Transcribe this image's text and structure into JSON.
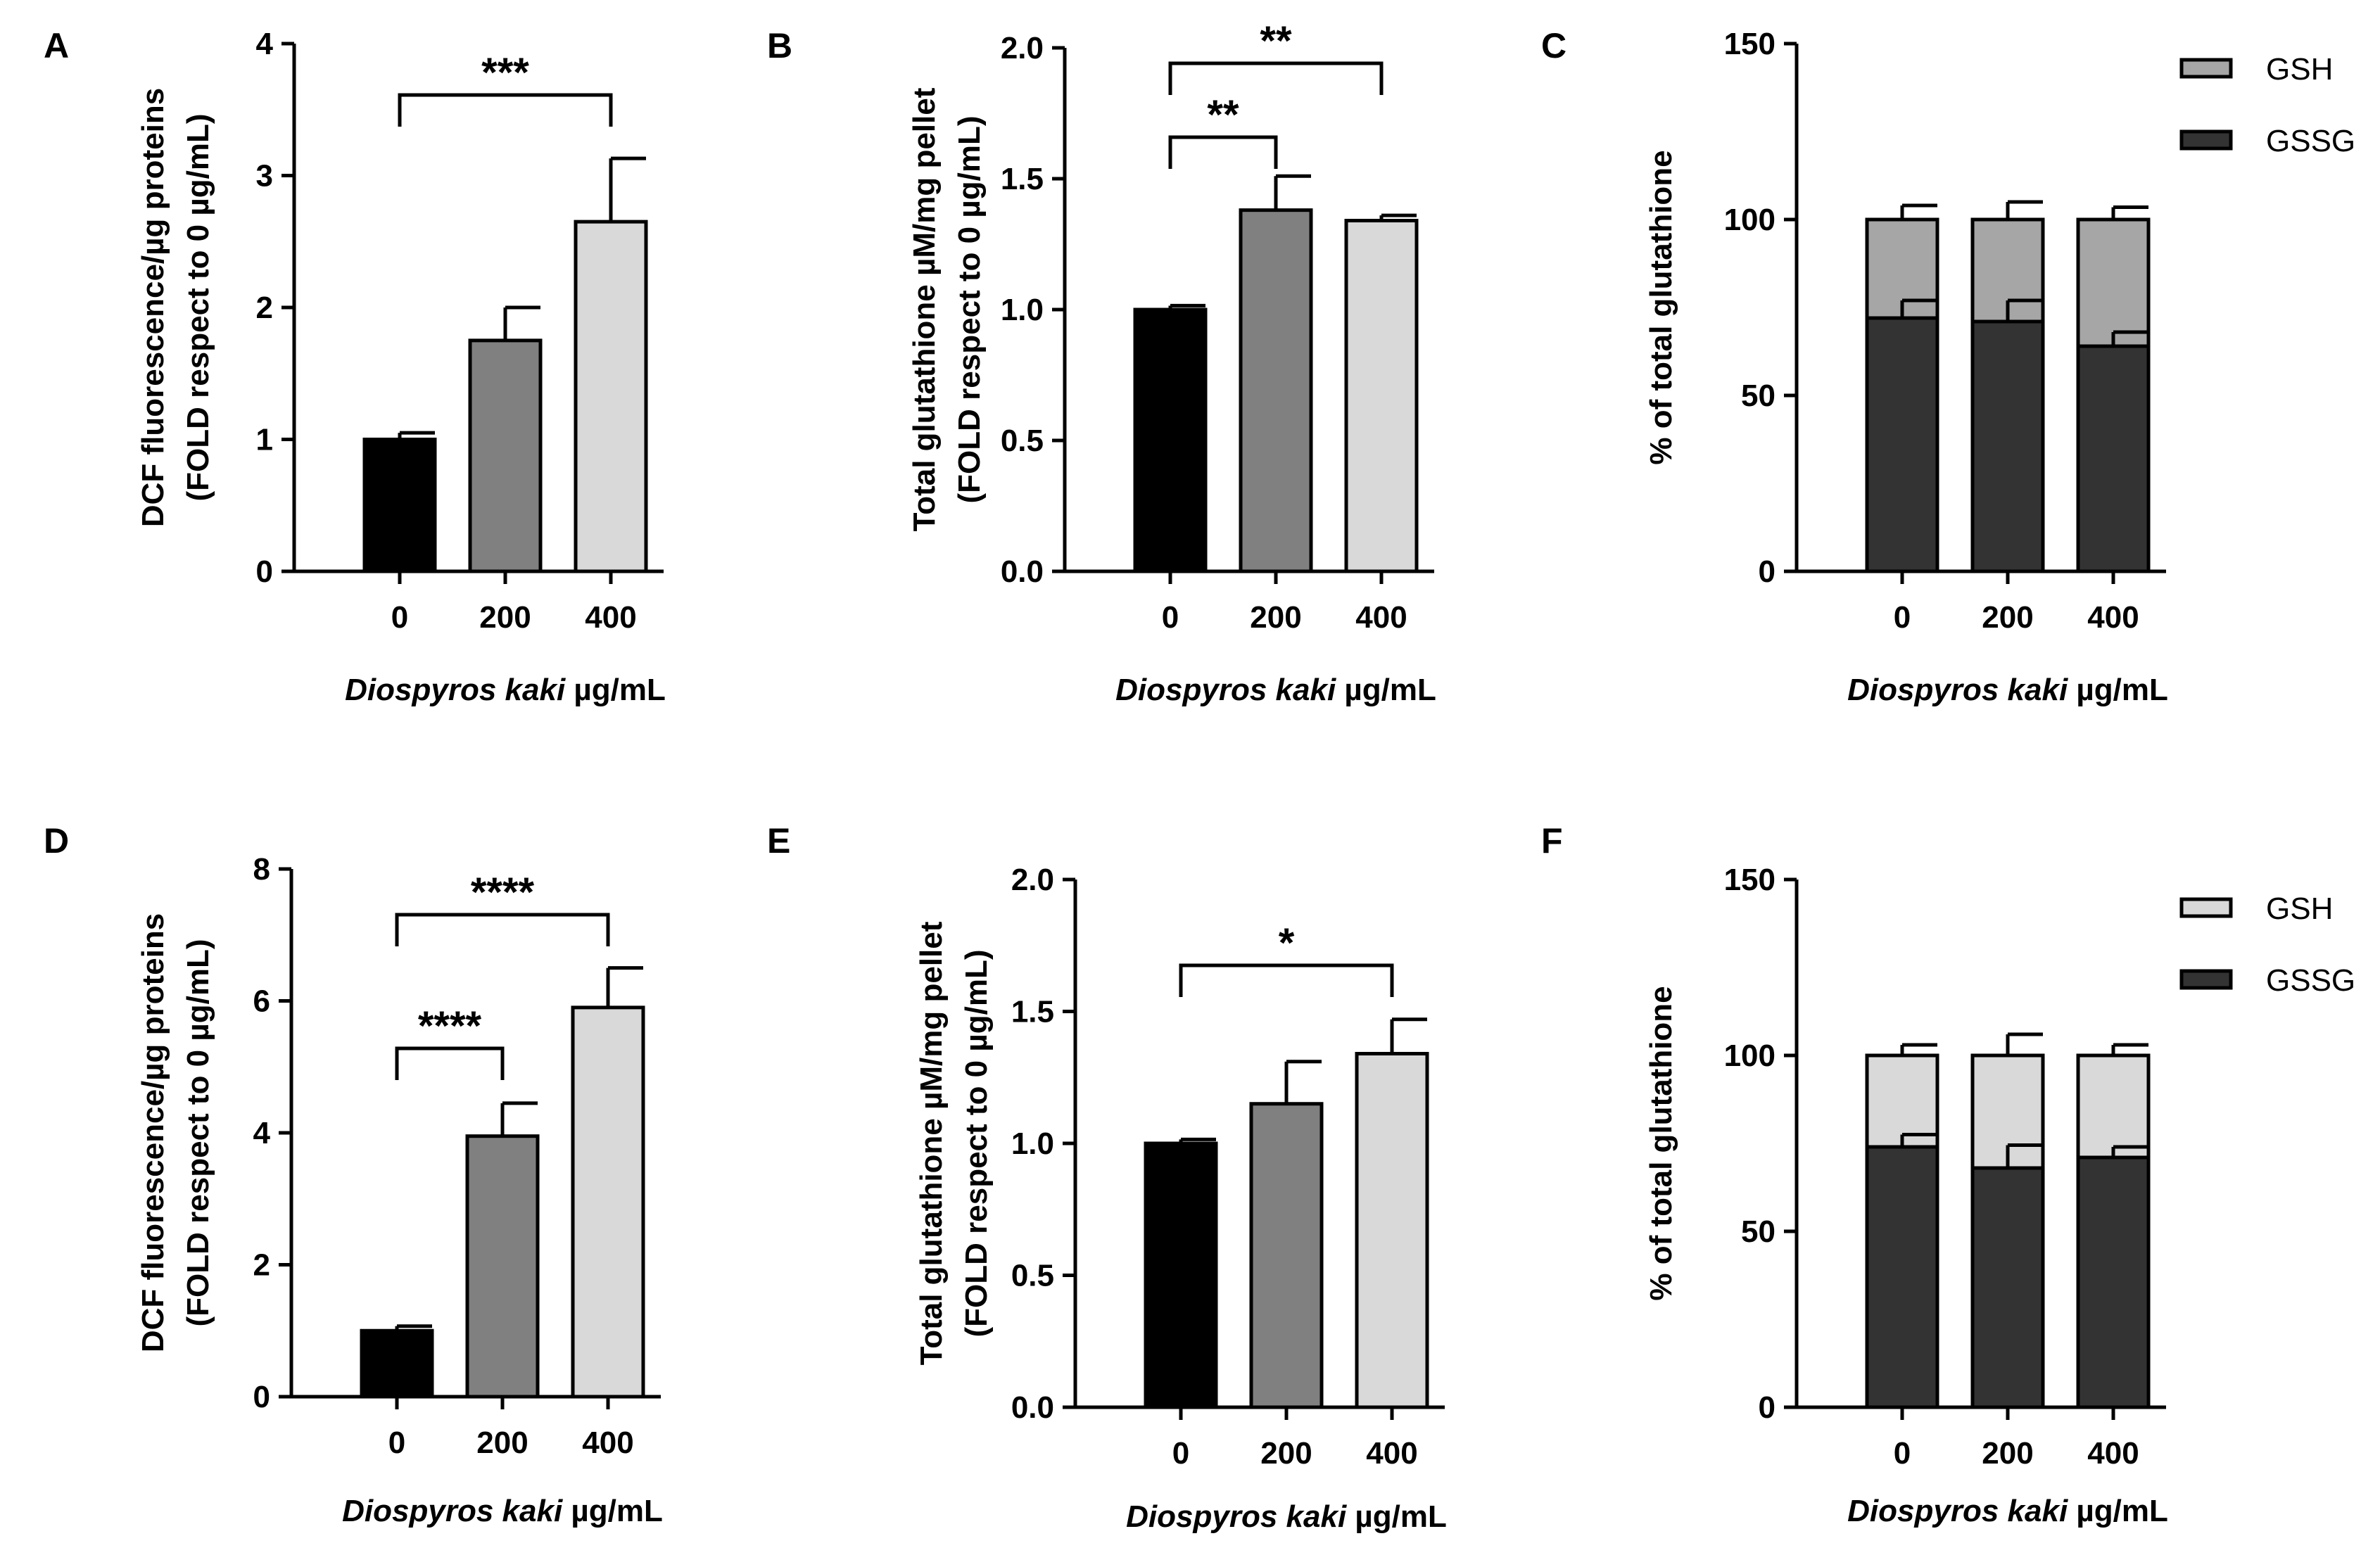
{
  "chart_data": [
    {
      "panel": "A",
      "type": "bar",
      "categories": [
        "0",
        "200",
        "400"
      ],
      "values": [
        1.0,
        1.75,
        2.65
      ],
      "errors": [
        0.05,
        0.25,
        0.48
      ],
      "colors": [
        "#000000",
        "#808080",
        "#d9d9d9"
      ],
      "ylabel": [
        "DCF fluorescence/µg proteins",
        "(FOLD respect to 0 µg/mL)"
      ],
      "xlabel": {
        "italic": "Diospyros kaki",
        "rest": " µg/mL"
      },
      "ylim": [
        0,
        4
      ],
      "yticks": [
        "0",
        "1",
        "2",
        "3",
        "4"
      ],
      "significance": [
        {
          "from": "0",
          "to": "400",
          "label": "***"
        }
      ]
    },
    {
      "panel": "B",
      "type": "bar",
      "categories": [
        "0",
        "200",
        "400"
      ],
      "values": [
        1.0,
        1.38,
        1.34
      ],
      "errors": [
        0.015,
        0.13,
        0.02
      ],
      "colors": [
        "#000000",
        "#808080",
        "#d9d9d9"
      ],
      "ylabel": [
        "Total glutathione µM/mg pellet",
        "(FOLD respect to 0 µg/mL)"
      ],
      "xlabel": {
        "italic": "Diospyros kaki",
        "rest": " µg/mL"
      },
      "ylim": [
        0,
        2.0
      ],
      "yticks": [
        "0.0",
        "0.5",
        "1.0",
        "1.5",
        "2.0"
      ],
      "significance": [
        {
          "from": "0",
          "to": "200",
          "label": "**"
        },
        {
          "from": "0",
          "to": "400",
          "label": "**"
        }
      ]
    },
    {
      "panel": "C",
      "type": "stacked-bar",
      "categories": [
        "0",
        "200",
        "400"
      ],
      "series": [
        {
          "name": "GSSG",
          "values": [
            72,
            71,
            64
          ],
          "errors": [
            5,
            6,
            4
          ],
          "color": "#333333"
        },
        {
          "name": "GSH",
          "values": [
            28,
            29,
            36
          ],
          "errors": [
            4,
            5,
            3.5
          ],
          "color": "#a6a6a6"
        }
      ],
      "ylabel": [
        "% of total glutathione"
      ],
      "xlabel": {
        "italic": "Diospyros kaki",
        "rest": " µg/mL"
      },
      "ylim": [
        0,
        150
      ],
      "yticks": [
        "0",
        "50",
        "100",
        "150"
      ],
      "legend": [
        "GSH",
        "GSSG"
      ]
    },
    {
      "panel": "D",
      "type": "bar",
      "categories": [
        "0",
        "200",
        "400"
      ],
      "values": [
        1.0,
        3.95,
        5.9
      ],
      "errors": [
        0.07,
        0.5,
        0.6
      ],
      "colors": [
        "#000000",
        "#808080",
        "#d9d9d9"
      ],
      "ylabel": [
        "DCF fluorescence/µg proteins",
        "(FOLD respect to 0 µg/mL)"
      ],
      "xlabel": {
        "italic": "Diospyros kaki",
        "rest": " µg/mL"
      },
      "ylim": [
        0,
        8
      ],
      "yticks": [
        "0",
        "2",
        "4",
        "6",
        "8"
      ],
      "significance": [
        {
          "from": "0",
          "to": "200",
          "label": "****"
        },
        {
          "from": "0",
          "to": "400",
          "label": "****"
        }
      ]
    },
    {
      "panel": "E",
      "type": "bar",
      "categories": [
        "0",
        "200",
        "400"
      ],
      "values": [
        1.0,
        1.15,
        1.34
      ],
      "errors": [
        0.015,
        0.16,
        0.13
      ],
      "colors": [
        "#000000",
        "#808080",
        "#d9d9d9"
      ],
      "ylabel": [
        "Total glutathione µM/mg pellet",
        "(FOLD respect to 0 µg/mL)"
      ],
      "xlabel": {
        "italic": "Diospyros kaki",
        "rest": " µg/mL"
      },
      "ylim": [
        0,
        2.0
      ],
      "yticks": [
        "0.0",
        "0.5",
        "1.0",
        "1.5",
        "2.0"
      ],
      "significance": [
        {
          "from": "0",
          "to": "400",
          "label": "*"
        }
      ]
    },
    {
      "panel": "F",
      "type": "stacked-bar",
      "categories": [
        "0",
        "200",
        "400"
      ],
      "series": [
        {
          "name": "GSSG",
          "values": [
            74,
            68,
            71
          ],
          "errors": [
            3.5,
            6.5,
            3
          ],
          "color": "#333333"
        },
        {
          "name": "GSH",
          "values": [
            26,
            32,
            29
          ],
          "errors": [
            3,
            6,
            3
          ],
          "color": "#d9d9d9"
        }
      ],
      "ylabel": [
        "% of total glutathione"
      ],
      "xlabel": {
        "italic": "Diospyros kaki",
        "rest": " µg/mL"
      },
      "ylim": [
        0,
        150
      ],
      "yticks": [
        "0",
        "50",
        "100",
        "150"
      ],
      "legend": [
        "GSH",
        "GSSG"
      ]
    }
  ]
}
